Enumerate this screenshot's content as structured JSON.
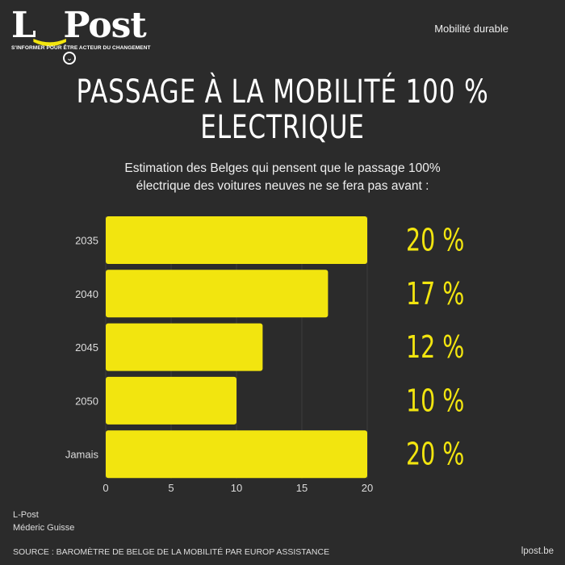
{
  "brand": {
    "logo": "L-Post",
    "tagline": "S'INFORMER POUR ÊTRE ACTEUR DU CHANGEMENT"
  },
  "category": "Mobilité durable",
  "title_lines": [
    "PASSAGE À LA MOBILITÉ 100 %",
    "ELECTRIQUE"
  ],
  "subtitle_lines": [
    "Estimation des Belges qui pensent que le passage 100%",
    "électrique des voitures neuves ne se fera pas avant :"
  ],
  "chart_data": {
    "type": "bar",
    "orientation": "horizontal",
    "categories": [
      "2035",
      "2040",
      "2045",
      "2050",
      "Jamais"
    ],
    "values": [
      20,
      17,
      12,
      10,
      20
    ],
    "value_labels": [
      "20 %",
      "17 %",
      "12 %",
      "10 %",
      "20 %"
    ],
    "xticks": [
      0,
      5,
      10,
      15,
      20
    ],
    "xlim": [
      0,
      20
    ],
    "grid": true,
    "bar_color": "#f2e50f"
  },
  "credits": [
    "L-Post",
    "Méderic Guisse"
  ],
  "source": "SOURCE : BAROMÈTRE DE BELGE DE LA MOBILITÉ PAR EUROP ASSISTANCE",
  "site": "lpost.be"
}
